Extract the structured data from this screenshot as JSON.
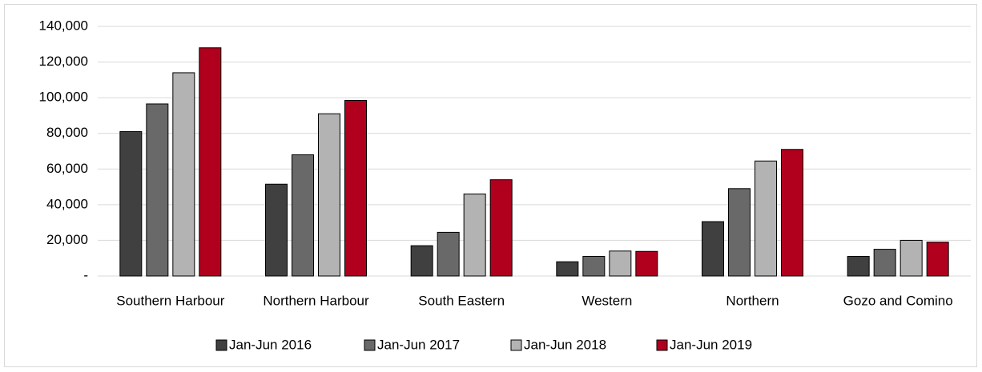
{
  "chart_data": {
    "type": "bar",
    "categories": [
      "Southern Harbour",
      "Northern Harbour",
      "South Eastern",
      "Western",
      "Northern",
      "Gozo and Comino"
    ],
    "series": [
      {
        "name": "Jan-Jun 2016",
        "color": "#404040",
        "values": [
          81000,
          51500,
          17000,
          8000,
          30500,
          11000
        ]
      },
      {
        "name": "Jan-Jun 2017",
        "color": "#696969",
        "values": [
          96500,
          68000,
          24500,
          11000,
          49000,
          15000
        ]
      },
      {
        "name": "Jan-Jun 2018",
        "color": "#b3b3b3",
        "values": [
          114000,
          91000,
          46000,
          14000,
          64500,
          20000
        ]
      },
      {
        "name": "Jan-Jun 2019",
        "color": "#b0001e",
        "values": [
          128000,
          98500,
          54000,
          13800,
          71000,
          19000
        ]
      }
    ],
    "ylim": [
      0,
      140000
    ],
    "yticks": [
      {
        "value": 0,
        "label": "-"
      },
      {
        "value": 20000,
        "label": "20,000"
      },
      {
        "value": 40000,
        "label": "40,000"
      },
      {
        "value": 60000,
        "label": "60,000"
      },
      {
        "value": 80000,
        "label": "80,000"
      },
      {
        "value": 100000,
        "label": "100,000"
      },
      {
        "value": 120000,
        "label": "120,000"
      },
      {
        "value": 140000,
        "label": "140,000"
      }
    ],
    "grid": true,
    "legend": "bottom"
  }
}
